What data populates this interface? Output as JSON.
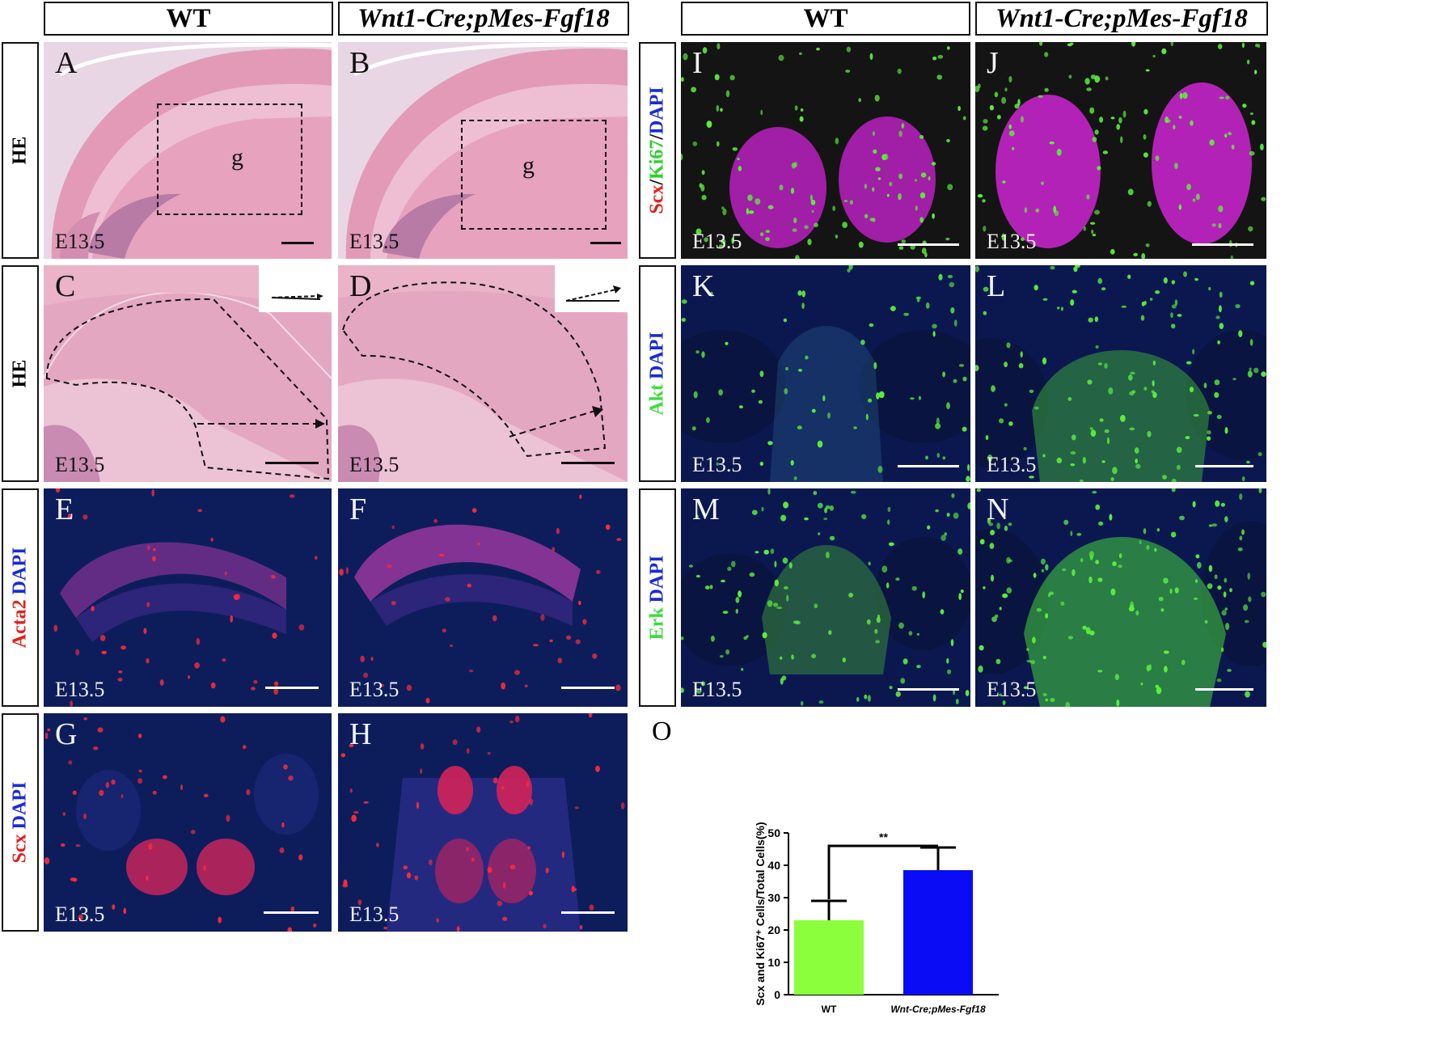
{
  "left_headers": {
    "wt": "WT",
    "mutant": "Wnt1-Cre;pMes-Fgf18"
  },
  "right_headers": {
    "wt": "WT",
    "mutant": "Wnt1-Cre;pMes-Fgf18"
  },
  "row_labels": [
    {
      "id": "he1",
      "parts": [
        {
          "text": "HE",
          "color": "#000000"
        }
      ]
    },
    {
      "id": "he2",
      "parts": [
        {
          "text": "HE",
          "color": "#000000"
        }
      ]
    },
    {
      "id": "acta2",
      "parts": [
        {
          "text": "Acta2",
          "color": "#e0201b"
        },
        {
          "text": " DAPI",
          "color": "#1a2bd6"
        }
      ]
    },
    {
      "id": "scx",
      "parts": [
        {
          "text": "Scx",
          "color": "#e0201b"
        },
        {
          "text": " DAPI",
          "color": "#1a2bd6"
        }
      ]
    },
    {
      "id": "scx-ki67",
      "parts": [
        {
          "text": "Scx",
          "color": "#e0201b"
        },
        {
          "text": "/",
          "color": "#000000"
        },
        {
          "text": "Ki67",
          "color": "#2fcf2f"
        },
        {
          "text": "/",
          "color": "#000000"
        },
        {
          "text": "DAPI",
          "color": "#1a2bd6"
        }
      ]
    },
    {
      "id": "akt",
      "parts": [
        {
          "text": "Akt",
          "color": "#3ddc3d"
        },
        {
          "text": " DAPI",
          "color": "#1a2bd6"
        }
      ]
    },
    {
      "id": "erk",
      "parts": [
        {
          "text": "Erk",
          "color": "#3ddc3d"
        },
        {
          "text": " DAPI",
          "color": "#1a2bd6"
        }
      ]
    }
  ],
  "panels": {
    "A": {
      "letter": "A",
      "stage": "E13.5",
      "label": "g"
    },
    "B": {
      "letter": "B",
      "stage": "E13.5",
      "label": "g"
    },
    "C": {
      "letter": "C",
      "stage": "E13.5"
    },
    "D": {
      "letter": "D",
      "stage": "E13.5"
    },
    "E": {
      "letter": "E",
      "stage": "E13.5"
    },
    "F": {
      "letter": "F",
      "stage": "E13.5"
    },
    "G": {
      "letter": "G",
      "stage": "E13.5"
    },
    "H": {
      "letter": "H",
      "stage": "E13.5"
    },
    "I": {
      "letter": "I",
      "stage": "E13.5"
    },
    "J": {
      "letter": "J",
      "stage": "E13.5"
    },
    "K": {
      "letter": "K",
      "stage": "E13.5"
    },
    "L": {
      "letter": "L",
      "stage": "E13.5"
    },
    "M": {
      "letter": "M",
      "stage": "E13.5"
    },
    "N": {
      "letter": "N",
      "stage": "E13.5"
    }
  },
  "panel_O_letter": "O",
  "colors": {
    "he_pink": "#d98aa8",
    "fluor_bg": "#0b1a52",
    "red": "#ff2b3a",
    "green": "#5cf03c",
    "magenta": "#d12ad6"
  },
  "chart_data": {
    "type": "bar",
    "categories": [
      "WT",
      "Wnt-Cre;pMes-Fgf18"
    ],
    "values": [
      23,
      38.5
    ],
    "errors": [
      6,
      7
    ],
    "bar_colors": [
      "#8cff3c",
      "#0a0cf5"
    ],
    "ylabel": "Scx and Ki67⁺ Cells/Total Cells(%)",
    "ylim": [
      0,
      50
    ],
    "yticks": [
      0,
      10,
      20,
      30,
      40,
      50
    ],
    "significance": "**",
    "grid": false
  }
}
